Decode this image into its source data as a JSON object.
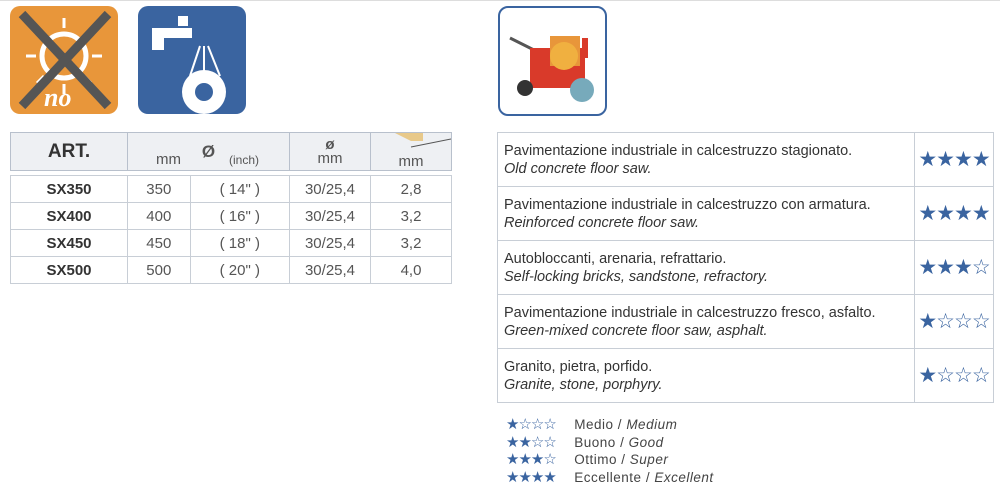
{
  "icons": [
    "no-sun-icon",
    "water-cooling-icon",
    "floor-saw-icon"
  ],
  "colors": {
    "accent": "#3a64a0",
    "orange": "#e8963a"
  },
  "spec": {
    "headers": {
      "art": "ART.",
      "diameter_symbol": "Ø",
      "mm": "mm",
      "inch": "(inch)",
      "bore_symbol": "ø",
      "bore_unit": "mm",
      "thickness_unit": "mm"
    },
    "rows": [
      {
        "art": "SX350",
        "mm": "350",
        "inch": "( 14\" )",
        "bore": "30/25,4",
        "thickness": "2,8"
      },
      {
        "art": "SX400",
        "mm": "400",
        "inch": "( 16\" )",
        "bore": "30/25,4",
        "thickness": "3,2"
      },
      {
        "art": "SX450",
        "mm": "450",
        "inch": "( 18\" )",
        "bore": "30/25,4",
        "thickness": "3,2"
      },
      {
        "art": "SX500",
        "mm": "500",
        "inch": "( 20\" )",
        "bore": "30/25,4",
        "thickness": "4,0"
      }
    ]
  },
  "materials": [
    {
      "it": "Pavimentazione industriale in calcestruzzo stagionato.",
      "en": "Old concrete floor saw.",
      "stars": "★★★★",
      "rating": 4
    },
    {
      "it": "Pavimentazione industriale in calcestruzzo con armatura.",
      "en": "Reinforced concrete floor saw.",
      "stars": "★★★★",
      "rating": 4
    },
    {
      "it": "Autobloccanti, arenaria, refrattario.",
      "en": "Self-locking bricks, sandstone, refractory.",
      "stars": "★★★☆",
      "rating": 3
    },
    {
      "it": "Pavimentazione industriale in calcestruzzo fresco, asfalto.",
      "en": "Green-mixed concrete floor saw, asphalt.",
      "stars": "★☆☆☆",
      "rating": 1
    },
    {
      "it": "Granito, pietra, porfido.",
      "en": "Granite, stone, porphyry.",
      "stars": "★☆☆☆",
      "rating": 1
    }
  ],
  "legend": [
    {
      "stars": "★☆☆☆",
      "it": "Medio",
      "en": "Medium"
    },
    {
      "stars": "★★☆☆",
      "it": "Buono",
      "en": "Good"
    },
    {
      "stars": "★★★☆",
      "it": "Ottimo",
      "en": "Super"
    },
    {
      "stars": "★★★★",
      "it": "Eccellente",
      "en": "Excellent"
    }
  ]
}
